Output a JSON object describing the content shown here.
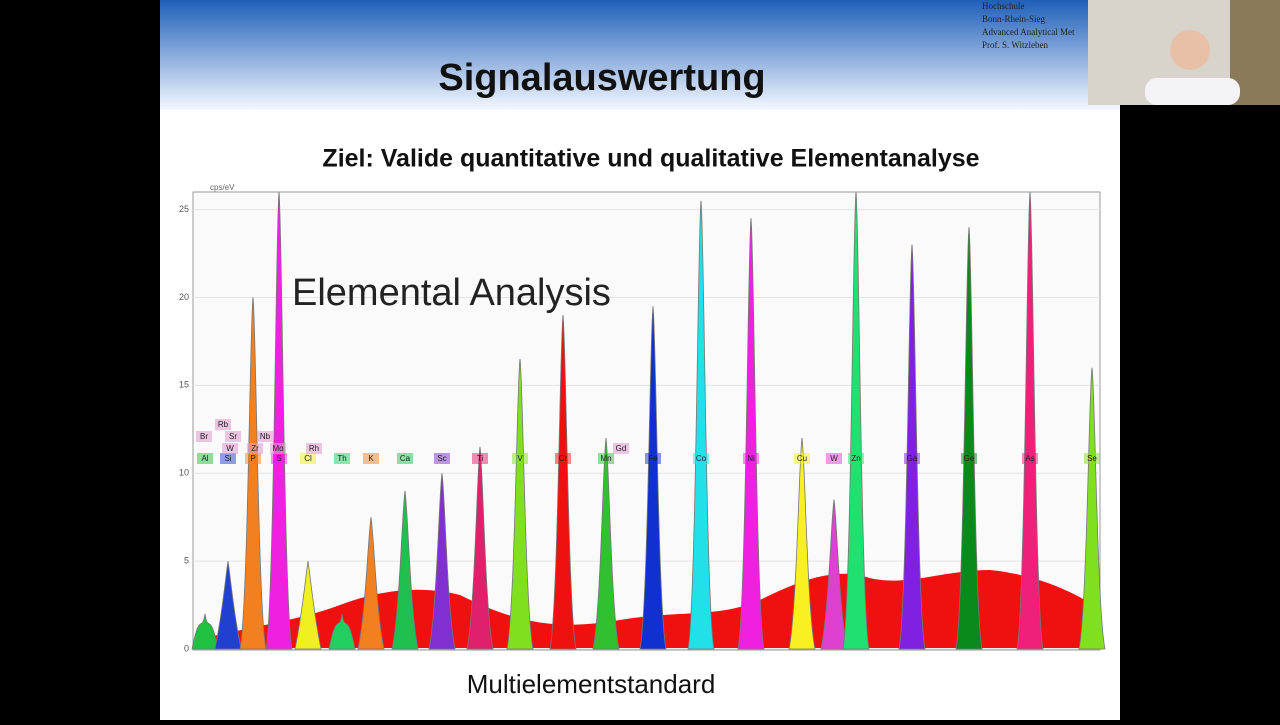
{
  "header": {
    "lines": [
      "Hochschule",
      "Bonn-Rhein-Sieg",
      "Advanced Analytical Met",
      "Prof. S. Witzleben"
    ]
  },
  "slide": {
    "title": "Signalauswertung",
    "subtitle": "Ziel: Valide quantitative und qualitative Elementanalyse",
    "caption": "Multielementstandard"
  },
  "chart_data": {
    "type": "spectrum",
    "title": "Elemental Analysis",
    "y_unit": "cps/eV",
    "ylim": [
      0,
      26
    ],
    "yticks": [
      0,
      5,
      10,
      15,
      20,
      25
    ],
    "categories": [
      "Al",
      "Si",
      "P",
      "S",
      "Cl",
      "Th",
      "K",
      "Ca",
      "Sc",
      "Ti",
      "V",
      "Cr",
      "Mn",
      "Fe",
      "Co",
      "Ni",
      "Cu",
      "W",
      "Zn",
      "Ga",
      "Ge",
      "As",
      "Se"
    ],
    "values": [
      2,
      5,
      20,
      26,
      5,
      2,
      7.5,
      9,
      10,
      11.5,
      16.5,
      19,
      12,
      19.5,
      25.5,
      24.5,
      12,
      8.5,
      26,
      23,
      24,
      26,
      16
    ],
    "colors": [
      "#20c040",
      "#2040d0",
      "#f08020",
      "#f020e0",
      "#f0f020",
      "#20d060",
      "#f08020",
      "#20c050",
      "#8030d0",
      "#e0206b",
      "#80e020",
      "#f01010",
      "#30c030",
      "#1030d0",
      "#20e0e8",
      "#f020e0",
      "#f8f020",
      "#e040d0",
      "#20e070",
      "#8020e0",
      "#0a8a1a",
      "#f0207a",
      "#80e020"
    ],
    "extra_labels": [
      "Br",
      "Rb",
      "Sr",
      "Nb",
      "W",
      "Zr",
      "Mo",
      "Rh",
      "Gd"
    ]
  }
}
